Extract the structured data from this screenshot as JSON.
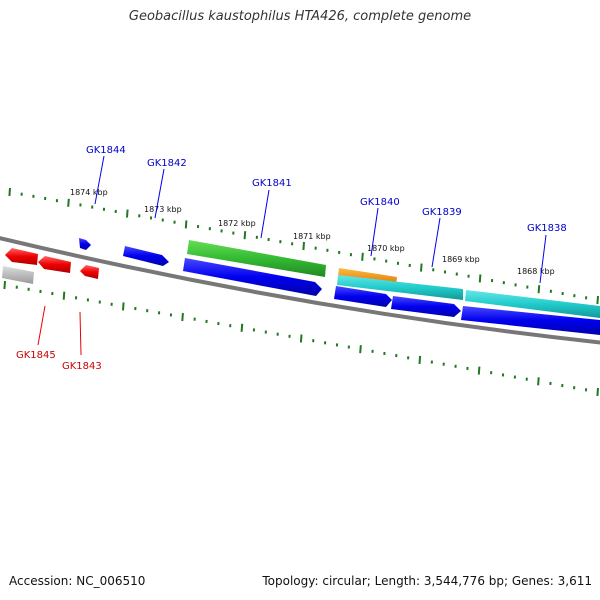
{
  "title": "Geobacillus kaustophilus HTA426, complete genome",
  "footer": {
    "accession": "Accession: NC_006510",
    "topology": "Topology: circular; Length: 3,544,776 bp; Genes: 3,611"
  },
  "colors": {
    "backbone": "#777777",
    "tick": "#227722",
    "forward_gene": "#0000ee",
    "reverse_gene": "#ee0000",
    "green_feature": "#33bb33",
    "orange_feature": "#ff9900",
    "cyan_feature": "#22cccc",
    "grey_feature": "#aaaaaa"
  },
  "kbp_labels": [
    "1874 kbp",
    "1873 kbp",
    "1872 kbp",
    "1871 kbp",
    "1870 kbp",
    "1869 kbp",
    "1868 kbp"
  ],
  "genes_forward": [
    "GK1844",
    "GK1842",
    "GK1841",
    "GK1840",
    "GK1839",
    "GK1838"
  ],
  "genes_reverse": [
    "GK1845",
    "GK1843"
  ]
}
